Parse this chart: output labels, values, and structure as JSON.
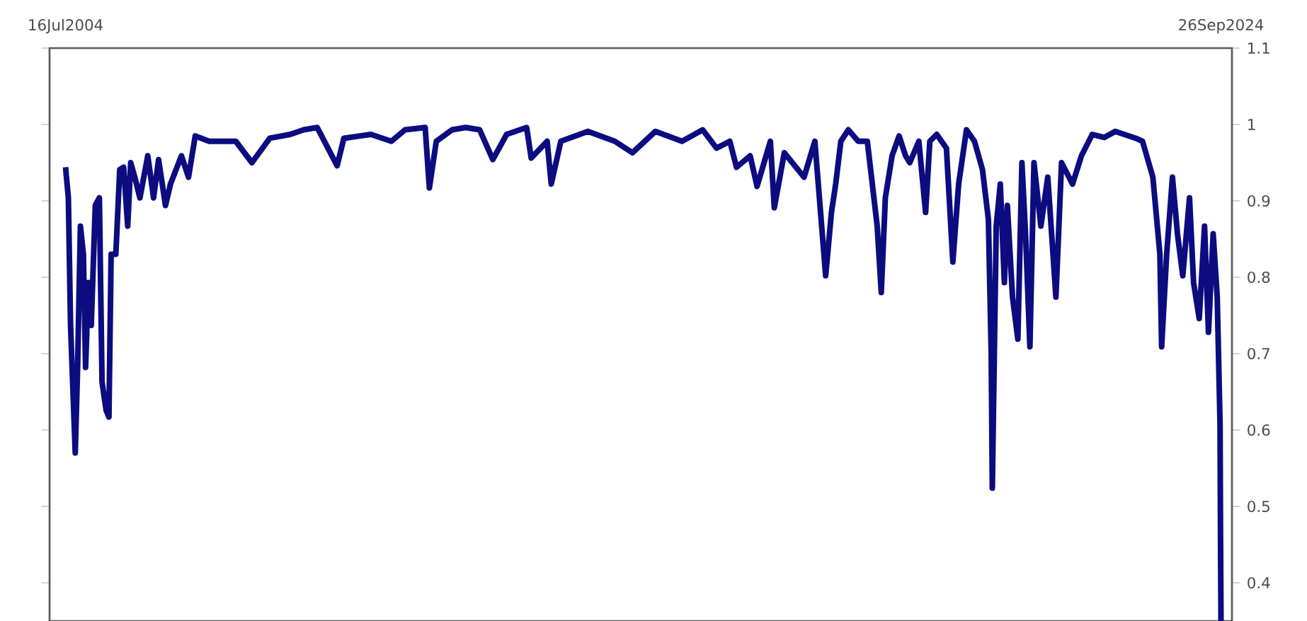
{
  "chart_data": {
    "type": "line",
    "color": "#0c0c80",
    "xlim": [
      "2004-04-05",
      "2024-12-05"
    ],
    "ylim": [
      0.35,
      1.1
    ],
    "xticks": [
      {
        "value": "2004-07-16",
        "label": "16Jul2004"
      },
      {
        "value": "2024-09-26",
        "label": "26Sep2024"
      }
    ],
    "yticks": [
      0.4,
      0.5,
      0.6,
      0.7,
      0.8,
      0.9,
      1,
      1.1
    ],
    "x": [
      "2004-07-16",
      "2004-08-03",
      "2004-08-17",
      "2004-09-16",
      "2004-10-01",
      "2004-10-19",
      "2004-11-07",
      "2004-11-21",
      "2004-12-09",
      "2004-12-27",
      "2005-01-22",
      "2005-02-17",
      "2005-03-06",
      "2005-04-01",
      "2005-04-19",
      "2005-05-03",
      "2005-06-02",
      "2005-06-27",
      "2005-07-22",
      "2005-08-17",
      "2005-09-05",
      "2005-10-01",
      "2005-11-03",
      "2005-12-23",
      "2006-01-29",
      "2006-03-02",
      "2006-04-15",
      "2006-05-17",
      "2006-07-26",
      "2006-09-09",
      "2006-10-22",
      "2007-01-19",
      "2007-07-08",
      "2007-10-19",
      "2008-02-10",
      "2008-06-20",
      "2008-09-13",
      "2008-12-09",
      "2009-04-15",
      "2009-05-28",
      "2009-11-17",
      "2010-03-27",
      "2010-06-23",
      "2010-10-29",
      "2010-11-25",
      "2011-01-08",
      "2011-04-19",
      "2011-07-15",
      "2011-10-12",
      "2012-01-04",
      "2012-04-01",
      "2012-08-07",
      "2012-09-05",
      "2012-12-16",
      "2013-01-11",
      "2013-03-13",
      "2013-09-02",
      "2014-02-21",
      "2014-06-13",
      "2014-11-07",
      "2015-04-26",
      "2015-09-05",
      "2015-12-02",
      "2016-02-25",
      "2016-04-08",
      "2016-07-04",
      "2016-08-17",
      "2016-11-10",
      "2016-12-05",
      "2017-02-07",
      "2017-06-13",
      "2017-08-21",
      "2017-10-29",
      "2017-12-05",
      "2018-01-01",
      "2018-02-03",
      "2018-03-23",
      "2018-05-25",
      "2018-07-22",
      "2018-09-23",
      "2018-10-19",
      "2018-11-14",
      "2018-12-27",
      "2019-02-10",
      "2019-03-23",
      "2019-04-19",
      "2019-06-16",
      "2019-07-29",
      "2019-08-25",
      "2019-10-08",
      "2019-12-09",
      "2020-01-19",
      "2020-02-25",
      "2020-04-15",
      "2020-06-05",
      "2020-07-26",
      "2020-09-02",
      "2020-09-20",
      "2020-09-27",
      "2020-10-22",
      "2020-11-17",
      "2020-12-13",
      "2021-01-01",
      "2021-02-03",
      "2021-03-09",
      "2021-04-04",
      "2021-04-29",
      "2021-05-25",
      "2021-06-20",
      "2021-08-03",
      "2021-09-16",
      "2021-11-07",
      "2021-12-13",
      "2022-02-21",
      "2022-04-19",
      "2022-06-27",
      "2022-09-13",
      "2022-11-21",
      "2023-04-01",
      "2023-05-14",
      "2023-07-19",
      "2023-09-02",
      "2023-09-13",
      "2023-10-15",
      "2023-11-21",
      "2023-12-23",
      "2024-01-26",
      "2024-03-09",
      "2024-04-04",
      "2024-05-10",
      "2024-06-13",
      "2024-07-08",
      "2024-08-07",
      "2024-09-02",
      "2024-09-20",
      "2024-09-23",
      "2024-09-26"
    ],
    "values": [
      0.944,
      0.904,
      0.737,
      0.57,
      0.682,
      0.867,
      0.83,
      0.682,
      0.793,
      0.737,
      0.894,
      0.904,
      0.663,
      0.626,
      0.617,
      0.83,
      0.83,
      0.941,
      0.944,
      0.867,
      0.95,
      0.931,
      0.904,
      0.959,
      0.904,
      0.954,
      0.894,
      0.922,
      0.959,
      0.931,
      0.985,
      0.978,
      0.978,
      0.95,
      0.982,
      0.987,
      0.993,
      0.996,
      0.946,
      0.982,
      0.987,
      0.978,
      0.993,
      0.996,
      0.917,
      0.978,
      0.993,
      0.996,
      0.993,
      0.954,
      0.987,
      0.996,
      0.956,
      0.978,
      0.922,
      0.978,
      0.991,
      0.978,
      0.963,
      0.991,
      0.978,
      0.993,
      0.969,
      0.978,
      0.944,
      0.959,
      0.919,
      0.978,
      0.891,
      0.963,
      0.931,
      0.978,
      0.802,
      0.885,
      0.922,
      0.978,
      0.993,
      0.978,
      0.978,
      0.867,
      0.78,
      0.904,
      0.959,
      0.985,
      0.959,
      0.95,
      0.978,
      0.885,
      0.978,
      0.987,
      0.969,
      0.82,
      0.922,
      0.993,
      0.978,
      0.941,
      0.876,
      0.7,
      0.524,
      0.867,
      0.922,
      0.793,
      0.894,
      0.774,
      0.719,
      0.95,
      0.848,
      0.709,
      0.95,
      0.867,
      0.931,
      0.774,
      0.95,
      0.922,
      0.959,
      0.987,
      0.983,
      0.991,
      0.982,
      0.978,
      0.931,
      0.83,
      0.709,
      0.83,
      0.931,
      0.857,
      0.802,
      0.904,
      0.793,
      0.746,
      0.867,
      0.728,
      0.857,
      0.774,
      0.607,
      0.459,
      0.35
    ]
  }
}
